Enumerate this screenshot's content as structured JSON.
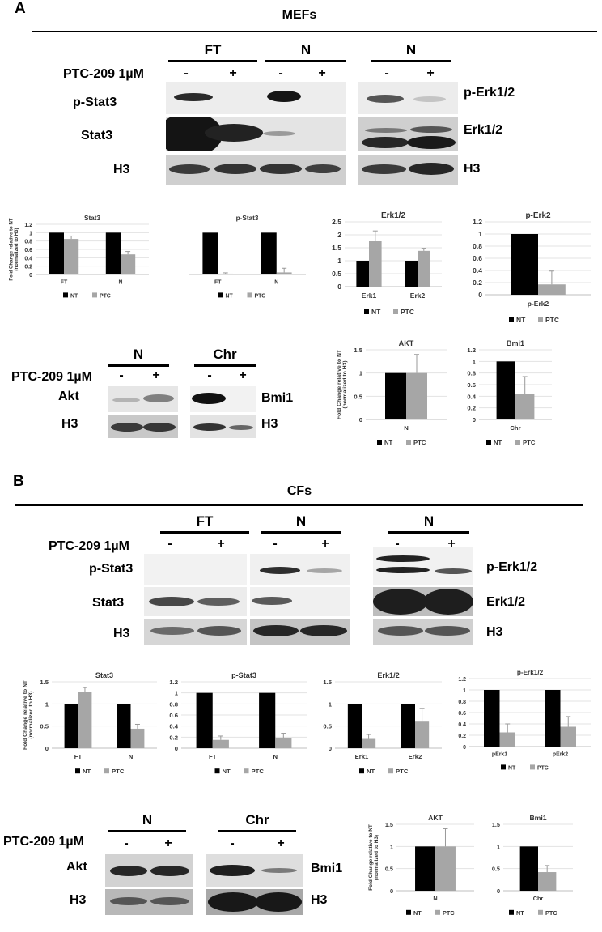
{
  "figure": {
    "panelA": {
      "letter": "A",
      "title": "MEFs",
      "blot1": {
        "groups": [
          "FT",
          "N",
          "N"
        ],
        "treatment": "PTC-209 1µM",
        "signs": [
          "-",
          "+",
          "-",
          "+",
          "-",
          "+"
        ],
        "rowLabelsLeft": [
          "p-Stat3",
          "Stat3",
          "H3"
        ],
        "rowLabelsRight": [
          "p-Erk1/2",
          "Erk1/2",
          "H3"
        ]
      },
      "blot2": {
        "groups": [
          "N",
          "Chr"
        ],
        "treatment": "PTC-209 1µM",
        "signs": [
          "-",
          "+",
          "-",
          "+"
        ],
        "rowLabelsLeft": [
          "Akt",
          "H3"
        ],
        "rowLabelsRight": [
          "Bmi1",
          "H3"
        ]
      }
    },
    "panelB": {
      "letter": "B",
      "title": "CFs",
      "blot1": {
        "groups": [
          "FT",
          "N",
          "N"
        ],
        "treatment": "PTC-209 1µM",
        "signs": [
          "-",
          "+",
          "-",
          "+",
          "-",
          "+"
        ],
        "rowLabelsLeft": [
          "p-Stat3",
          "Stat3",
          "H3"
        ],
        "rowLabelsRight": [
          "p-Erk1/2",
          "Erk1/2",
          "H3"
        ]
      },
      "blot2": {
        "groups": [
          "N",
          "Chr"
        ],
        "treatment": "PTC-209 1µM",
        "signs": [
          "-",
          "+",
          "-",
          "+"
        ],
        "rowLabelsLeft": [
          "Akt",
          "H3"
        ],
        "rowLabelsRight": [
          "Bmi1",
          "H3"
        ]
      }
    },
    "colors": {
      "nt": "#000000",
      "ptc": "#a6a6a6"
    }
  },
  "chart_data": [
    {
      "type": "bar",
      "title": "Stat3",
      "ylabel": "Fold Change relative to NT (normalized to H3)",
      "categories": [
        "FT",
        "N"
      ],
      "ylim": [
        0,
        1.2
      ],
      "yticks": [
        0,
        0.2,
        0.4,
        0.6,
        0.8,
        1,
        1.2
      ],
      "tick_labels": [
        "0",
        "0.2",
        "0.4",
        "0.6",
        "0.8",
        "1",
        "1.2"
      ],
      "series": [
        {
          "name": "NT",
          "values": [
            1,
            1
          ]
        },
        {
          "name": "PTC",
          "values": [
            0.85,
            0.48
          ],
          "errors": [
            0.07,
            0.07
          ]
        }
      ],
      "legend": "bottom"
    },
    {
      "type": "bar",
      "title": "p-Stat3",
      "ylabel": "",
      "categories": [
        "FT",
        "N"
      ],
      "ylim": [
        0,
        1.2
      ],
      "yticks": [],
      "tick_labels": [],
      "series": [
        {
          "name": "NT",
          "values": [
            1,
            1
          ]
        },
        {
          "name": "PTC",
          "values": [
            0.02,
            0.05
          ],
          "errors": [
            0.02,
            0.1
          ]
        }
      ],
      "legend": "bottom"
    },
    {
      "type": "bar",
      "title": "Erk1/2",
      "ylabel": "",
      "categories": [
        "Erk1",
        "Erk2"
      ],
      "ylim": [
        0,
        2.5
      ],
      "yticks": [
        0,
        0.5,
        1,
        1.5,
        2,
        2.5
      ],
      "tick_labels": [
        "0",
        "0.5",
        "1",
        "1.5",
        "2",
        "2.5"
      ],
      "series": [
        {
          "name": "NT",
          "values": [
            1,
            1
          ]
        },
        {
          "name": "PTC",
          "values": [
            1.75,
            1.38
          ],
          "errors": [
            0.4,
            0.1
          ]
        }
      ],
      "legend": "bottom"
    },
    {
      "type": "bar",
      "title": "p-Erk2",
      "ylabel": "",
      "categories": [
        "p-Erk2"
      ],
      "ylim": [
        0,
        1.2
      ],
      "yticks": [
        0,
        0.2,
        0.4,
        0.6,
        0.8,
        1,
        1.2
      ],
      "tick_labels": [
        "0",
        "0.2",
        "0.4",
        "0.6",
        "0.8",
        "1",
        "1.2"
      ],
      "series": [
        {
          "name": "NT",
          "values": [
            1
          ]
        },
        {
          "name": "PTC",
          "values": [
            0.17
          ],
          "errors": [
            0.22
          ]
        }
      ],
      "legend": "bottom"
    },
    {
      "type": "bar",
      "title": "AKT",
      "ylabel": "Fold Change relative to NT (normalized to H3)",
      "categories": [
        "N"
      ],
      "ylim": [
        0,
        1.5
      ],
      "yticks": [
        0,
        0.5,
        1,
        1.5
      ],
      "tick_labels": [
        "0",
        "0.5",
        "1",
        "1.5"
      ],
      "series": [
        {
          "name": "NT",
          "values": [
            1
          ]
        },
        {
          "name": "PTC",
          "values": [
            1
          ],
          "errors": [
            0.4
          ]
        }
      ],
      "legend": "bottom"
    },
    {
      "type": "bar",
      "title": "Bmi1",
      "ylabel": "",
      "categories": [
        "Chr"
      ],
      "ylim": [
        0,
        1.2
      ],
      "yticks": [
        0,
        0.2,
        0.4,
        0.6,
        0.8,
        1,
        1.2
      ],
      "tick_labels": [
        "0",
        "0.2",
        "0.4",
        "0.6",
        "0.8",
        "1",
        "1.2"
      ],
      "series": [
        {
          "name": "NT",
          "values": [
            1
          ]
        },
        {
          "name": "PTC",
          "values": [
            0.44
          ],
          "errors": [
            0.3
          ]
        }
      ],
      "legend": "bottom"
    },
    {
      "type": "bar",
      "title": "Stat3",
      "ylabel": "Fold Change relative to NT (normalized to H3)",
      "categories": [
        "FT",
        "N"
      ],
      "ylim": [
        0,
        1.5
      ],
      "yticks": [
        0,
        0.5,
        1,
        1.5
      ],
      "tick_labels": [
        "0",
        "0.5",
        "1",
        "1.5"
      ],
      "series": [
        {
          "name": "NT",
          "values": [
            1,
            1
          ]
        },
        {
          "name": "PTC",
          "values": [
            1.27,
            0.44
          ],
          "errors": [
            0.1,
            0.1
          ]
        }
      ],
      "legend": "bottom"
    },
    {
      "type": "bar",
      "title": "p-Stat3",
      "ylabel": "",
      "categories": [
        "FT",
        "N"
      ],
      "ylim": [
        0,
        1.2
      ],
      "yticks": [
        0,
        0.2,
        0.4,
        0.6,
        0.8,
        1,
        1.2
      ],
      "tick_labels": [
        "0",
        "0.2",
        "0.4",
        "0.6",
        "0.8",
        "1",
        "1.2"
      ],
      "series": [
        {
          "name": "NT",
          "values": [
            1,
            1
          ]
        },
        {
          "name": "PTC",
          "values": [
            0.15,
            0.19
          ],
          "errors": [
            0.07,
            0.08
          ]
        }
      ],
      "legend": "bottom"
    },
    {
      "type": "bar",
      "title": "Erk1/2",
      "ylabel": "",
      "categories": [
        "Erk1",
        "Erk2"
      ],
      "ylim": [
        0,
        1.5
      ],
      "yticks": [
        0,
        0.5,
        1,
        1.5
      ],
      "tick_labels": [
        "0",
        "0.5",
        "1",
        "1.5"
      ],
      "series": [
        {
          "name": "NT",
          "values": [
            1,
            1
          ]
        },
        {
          "name": "PTC",
          "values": [
            0.21,
            0.6
          ],
          "errors": [
            0.1,
            0.3
          ]
        }
      ],
      "legend": "bottom"
    },
    {
      "type": "bar",
      "title": "p-Erk1/2",
      "ylabel": "",
      "categories": [
        "pErk1",
        "pErk2"
      ],
      "ylim": [
        0,
        1.2
      ],
      "yticks": [
        0,
        0.2,
        0.4,
        0.6,
        0.8,
        1,
        1.2
      ],
      "tick_labels": [
        "0",
        "0.2",
        "0.4",
        "0.6",
        "0.8",
        "1",
        "1.2"
      ],
      "series": [
        {
          "name": "NT",
          "values": [
            1,
            1
          ]
        },
        {
          "name": "PTC",
          "values": [
            0.25,
            0.35
          ],
          "errors": [
            0.15,
            0.18
          ]
        }
      ],
      "legend": "bottom"
    },
    {
      "type": "bar",
      "title": "AKT",
      "ylabel": "Fold Change relative to NT (normalized to H3)",
      "categories": [
        "N"
      ],
      "ylim": [
        0,
        1.5
      ],
      "yticks": [
        0,
        0.5,
        1,
        1.5
      ],
      "tick_labels": [
        "0",
        "0.5",
        "1",
        "1.5"
      ],
      "series": [
        {
          "name": "NT",
          "values": [
            1
          ]
        },
        {
          "name": "PTC",
          "values": [
            1
          ],
          "errors": [
            0.4
          ]
        }
      ],
      "legend": "bottom"
    },
    {
      "type": "bar",
      "title": "Bmi1",
      "ylabel": "",
      "categories": [
        "Chr"
      ],
      "ylim": [
        0,
        1.5
      ],
      "yticks": [
        0,
        0.5,
        1,
        1.5
      ],
      "tick_labels": [
        "0",
        "0.5",
        "1",
        "1.5"
      ],
      "series": [
        {
          "name": "NT",
          "values": [
            1
          ]
        },
        {
          "name": "PTC",
          "values": [
            0.42
          ],
          "errors": [
            0.15
          ]
        }
      ],
      "legend": "bottom"
    }
  ]
}
